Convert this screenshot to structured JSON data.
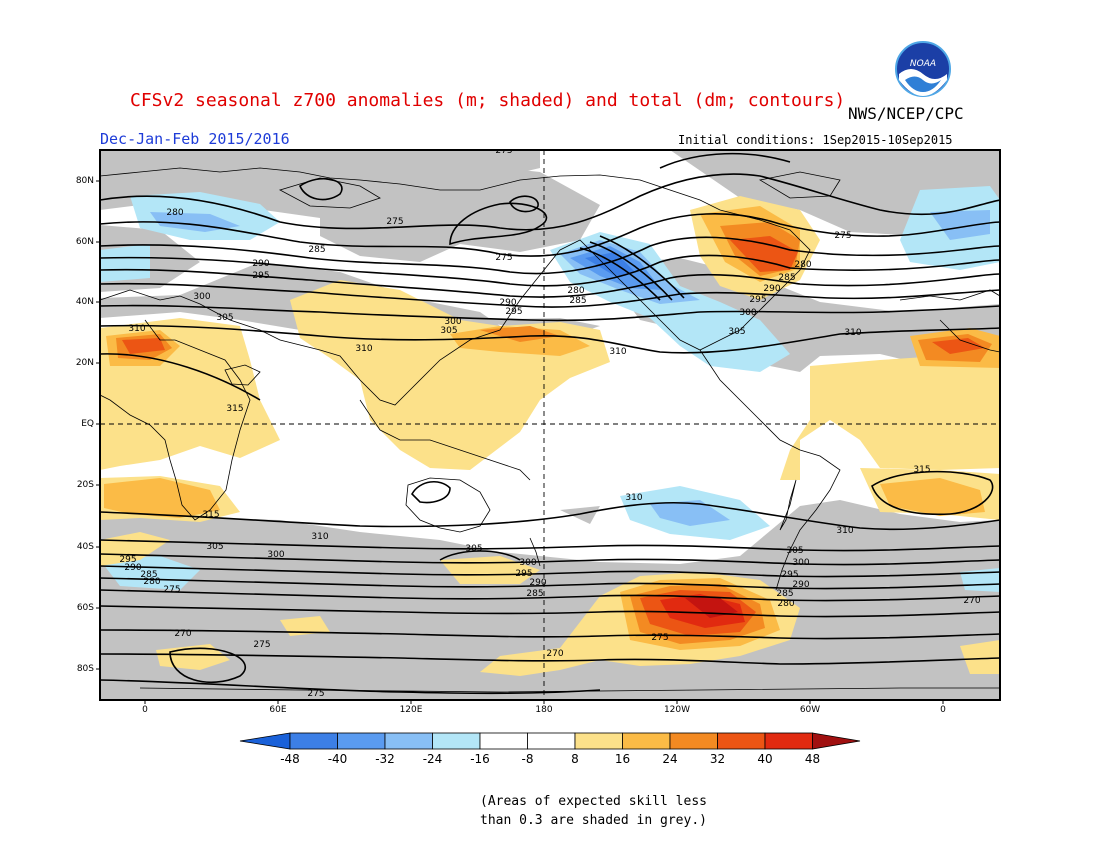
{
  "header": {
    "title": "CFSv2 seasonal z700 anomalies (m; shaded) and total (dm; contours)",
    "agency": "NWS/NCEP/CPC",
    "season": "Dec-Jan-Feb 2015/2016",
    "initial_conditions": "Initial conditions: 1Sep2015-10Sep2015",
    "logo_text": "NOAA"
  },
  "axes": {
    "lat_labels": [
      "80N",
      "60N",
      "40N",
      "20N",
      "EQ",
      "20S",
      "40S",
      "60S",
      "80S"
    ],
    "lon_labels": [
      "0",
      "60E",
      "120E",
      "180",
      "120W",
      "60W",
      "0"
    ]
  },
  "contour_labels": {
    "north": [
      "280",
      "275",
      "285",
      "290",
      "295",
      "300",
      "305",
      "310",
      "315",
      "275",
      "290",
      "295",
      "300",
      "305",
      "310",
      "300",
      "305",
      "310",
      "280",
      "285",
      "275",
      "275",
      "280",
      "285",
      "290",
      "295",
      "300",
      "305",
      "310",
      "275"
    ],
    "south": [
      "315",
      "315",
      "310",
      "310",
      "310",
      "305",
      "300",
      "295",
      "290",
      "285",
      "280",
      "275",
      "305",
      "300",
      "295",
      "290",
      "285",
      "305",
      "300",
      "295",
      "290",
      "285",
      "280",
      "270",
      "275",
      "275",
      "270",
      "275",
      "270"
    ]
  },
  "colorbar": {
    "colors": [
      "#1a61d9",
      "#3c7fe6",
      "#5a9bf0",
      "#88bff5",
      "#b3e6f7",
      "#ffffff",
      "#ffffff",
      "#fce18a",
      "#fbbb46",
      "#f38a22",
      "#ec5514",
      "#e12a10",
      "#c41410",
      "#a01010"
    ],
    "labels": [
      "-48",
      "-40",
      "-32",
      "-24",
      "-16",
      "-8",
      "8",
      "16",
      "24",
      "32",
      "40",
      "48"
    ]
  },
  "note": {
    "line1": "(Areas of expected skill less",
    "line2": "than 0.3 are shaded in grey.)"
  }
}
